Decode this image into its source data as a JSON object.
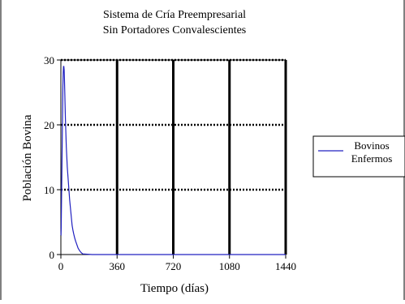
{
  "chart_data": {
    "type": "line",
    "title": "Sistema de Cría Preempresarial",
    "subtitle": "Sin Portadores Convalescientes",
    "xlabel": "Tiempo (días)",
    "ylabel": "Población Bovina",
    "xlim": [
      0,
      1440
    ],
    "ylim": [
      0,
      30
    ],
    "xticks": [
      0,
      360,
      720,
      1080,
      1440
    ],
    "yticks": [
      0,
      10,
      20,
      30
    ],
    "xtick_labels": [
      "0",
      "360",
      "720",
      "1080",
      "1440"
    ],
    "ytick_labels": [
      "0",
      "10",
      "20",
      "30"
    ],
    "grid": true,
    "legend_position": "right",
    "series": [
      {
        "name": "Bovinos Enfermos",
        "legend_label_lines": [
          "Bovinos",
          "Enfermos"
        ],
        "color": "#2020c0",
        "x": [
          0,
          1,
          2,
          3,
          5,
          7,
          9,
          11,
          13,
          15,
          17,
          19,
          21,
          23,
          25,
          27,
          29,
          31,
          33,
          35,
          38,
          41,
          44,
          47,
          50,
          53,
          56,
          60,
          64,
          68,
          72,
          77,
          82,
          88,
          94,
          100,
          110,
          120,
          130,
          140,
          200,
          360,
          720,
          1080,
          1440
        ],
        "y": [
          3,
          3,
          4,
          6,
          10,
          14,
          18,
          22,
          26,
          28,
          29,
          29,
          28.5,
          27,
          25,
          23,
          21,
          19.5,
          18,
          16.5,
          15,
          13.5,
          12.5,
          11.5,
          10.5,
          9.5,
          8.5,
          7.5,
          6.5,
          5.5,
          4.5,
          3.8,
          3.2,
          2.6,
          2.1,
          1.7,
          1.0,
          0.6,
          0.3,
          0.1,
          0,
          0,
          0,
          0,
          0
        ]
      }
    ]
  }
}
